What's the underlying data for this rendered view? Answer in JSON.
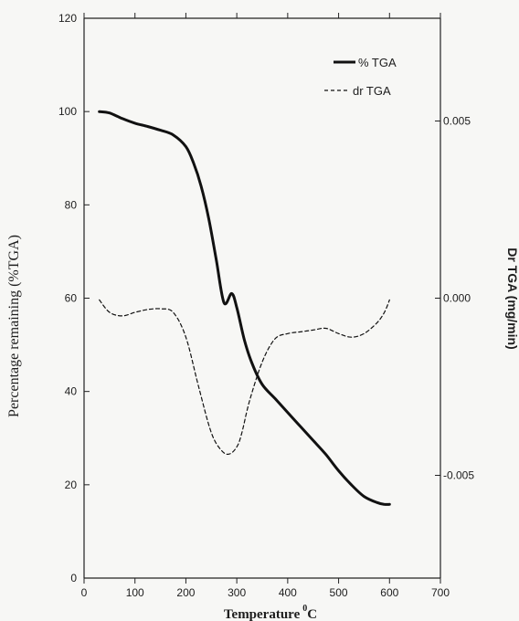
{
  "chart_data": {
    "type": "line",
    "xlabel": "Temperature",
    "xlabel_sup": "0",
    "xlabel_unit": "C",
    "ylabel": "Percentage remaining (%TGA)",
    "y2label": "Dr TGA (mg/min)",
    "xlim": [
      0,
      700
    ],
    "ylim": [
      0,
      120
    ],
    "y2lim": [
      -0.0079,
      0.0079
    ],
    "x_ticks": [
      0,
      100,
      200,
      300,
      400,
      500,
      600,
      700
    ],
    "y_ticks": [
      0,
      20,
      40,
      60,
      80,
      100,
      120
    ],
    "y2_ticks": [
      -0.005,
      0,
      0.005
    ],
    "x_tick_labels": [
      "0",
      "100",
      "200",
      "300",
      "400",
      "500",
      "600",
      "700"
    ],
    "y_tick_labels": [
      "0",
      "20",
      "40",
      "60",
      "80",
      "100",
      "120"
    ],
    "y2_tick_labels": [
      "-0.005",
      "0.000",
      "0.005"
    ],
    "grid": false,
    "legend_position": "top-right",
    "series": [
      {
        "name": "% TGA",
        "axis": "left",
        "style": "solid",
        "color": "#111111",
        "x": [
          30,
          50,
          75,
          100,
          125,
          150,
          175,
          200,
          215,
          230,
          245,
          260,
          275,
          290,
          300,
          315,
          330,
          350,
          375,
          400,
          425,
          450,
          475,
          500,
          525,
          550,
          575,
          590,
          600
        ],
        "y": [
          100,
          99.7,
          98.5,
          97.5,
          96.8,
          96,
          95,
          92.5,
          89,
          84,
          77,
          68,
          59,
          61,
          58,
          51,
          46,
          41.5,
          38.5,
          35.5,
          32.5,
          29.5,
          26.5,
          23,
          20,
          17.5,
          16.2,
          15.8,
          15.8
        ]
      },
      {
        "name": "dr TGA",
        "axis": "right",
        "style": "dashed",
        "color": "#111111",
        "x": [
          30,
          50,
          75,
          100,
          125,
          150,
          175,
          200,
          225,
          250,
          270,
          285,
          300,
          310,
          325,
          350,
          375,
          400,
          425,
          450,
          475,
          500,
          525,
          550,
          575,
          590,
          600
        ],
        "y": [
          -5e-05,
          -0.0004,
          -0.0005,
          -0.0004,
          -0.00032,
          -0.0003,
          -0.0004,
          -0.0011,
          -0.0025,
          -0.0038,
          -0.0043,
          -0.0044,
          -0.0042,
          -0.0038,
          -0.0029,
          -0.0018,
          -0.00115,
          -0.001,
          -0.00095,
          -0.0009,
          -0.00085,
          -0.001,
          -0.0011,
          -0.001,
          -0.0007,
          -0.0004,
          -5e-05
        ]
      }
    ]
  }
}
